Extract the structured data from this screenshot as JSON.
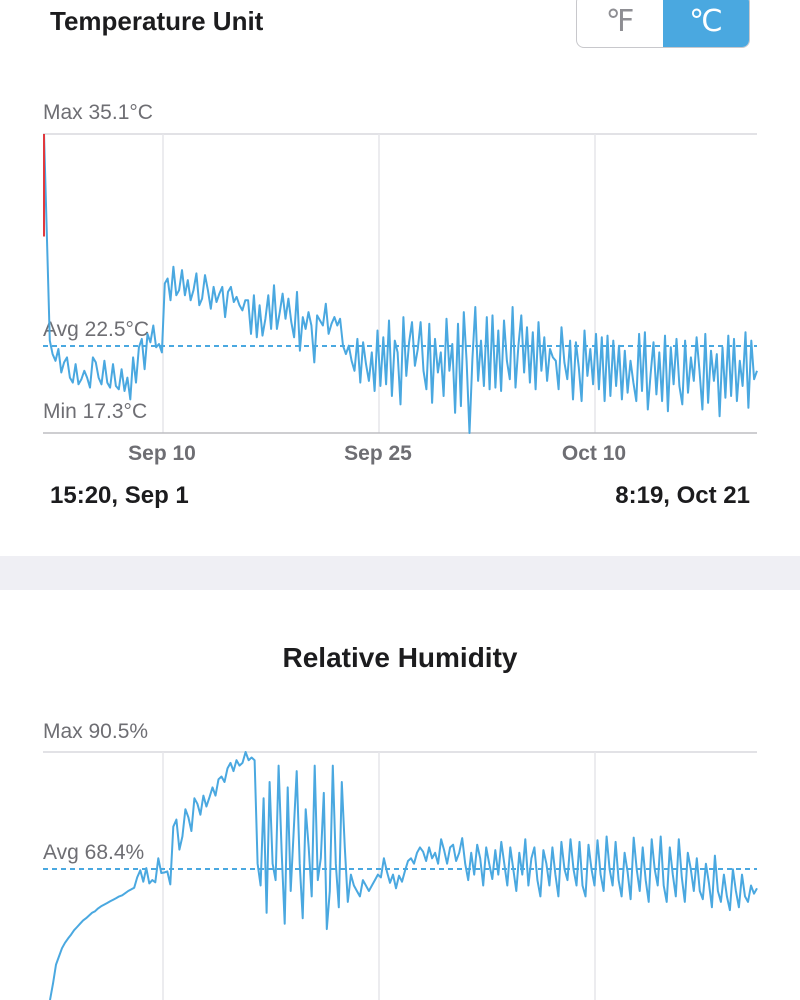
{
  "temperature": {
    "unit_title": "Temperature Unit",
    "unit_options": [
      "℉",
      "℃"
    ],
    "selected_unit": "℃",
    "max_label": "Max 35.1°C",
    "avg_label": "Avg 22.5°C",
    "min_label": "Min 17.3°C",
    "start_label": "15:20,  Sep 1",
    "end_label": "8:19,  Oct 21",
    "colors": {
      "line": "#4aa8e0",
      "peak": "#e0393e",
      "grid": "#d9d9de",
      "text": "#6e6e73"
    }
  },
  "humidity": {
    "title": "Relative Humidity",
    "max_label": "Max 90.5%",
    "avg_label": "Avg 68.4%"
  },
  "chart_data": [
    {
      "type": "line",
      "title": "",
      "x_start": "2023-09-01T15:20",
      "x_end": "2023-10-21T08:19",
      "x_ticks": [
        "Sep 10",
        "Sep 25",
        "Oct 10"
      ],
      "ylim": [
        17.3,
        35.1
      ],
      "max": 35.1,
      "avg": 22.5,
      "min": 17.3,
      "unit": "°C",
      "series": [
        {
          "values": [
            35.1,
            29.0,
            22.8,
            22.0,
            21.6,
            22.3,
            20.9,
            21.5,
            21.8,
            20.6,
            20.3,
            21.4,
            20.2,
            20.5,
            21.0,
            20.6,
            20.0,
            21.8,
            21.5,
            20.6,
            20.2,
            21.6,
            20.3,
            20.0,
            21.4,
            20.1,
            19.9,
            21.1,
            19.8,
            20.6,
            19.3,
            21.8,
            20.3,
            22.4,
            22.9,
            21.1,
            23.2,
            22.7,
            23.7,
            22.4,
            22.6,
            22.1,
            26.2,
            26.5,
            25.2,
            27.2,
            25.5,
            25.8,
            27.0,
            25.5,
            26.4,
            25.2,
            25.8,
            26.8,
            24.9,
            25.3,
            26.7,
            25.8,
            24.7,
            26.0,
            25.1,
            25.6,
            26.0,
            24.2,
            25.7,
            26.0,
            25.1,
            25.4,
            24.9,
            24.6,
            25.2,
            25.2,
            23.2,
            25.5,
            23.0,
            24.9,
            23.1,
            24.1,
            25.5,
            23.5,
            26.1,
            23.5,
            24.5,
            25.6,
            24.1,
            25.3,
            23.9,
            23.0,
            25.7,
            22.2,
            24.2,
            23.5,
            24.5,
            23.7,
            21.5,
            24.3,
            24.0,
            23.7,
            25.0,
            23.2,
            23.8,
            24.2,
            23.7,
            24.1,
            22.5,
            22.0,
            22.5,
            21.6,
            21.0,
            22.9,
            20.3,
            22.7,
            21.4,
            20.4,
            22.1,
            19.8,
            23.4,
            20.1,
            23.0,
            20.2,
            24.0,
            19.5,
            22.8,
            22.1,
            19.0,
            24.2,
            20.7,
            22.7,
            23.9,
            21.3,
            22.3,
            23.9,
            21.0,
            19.9,
            23.8,
            19.1,
            22.9,
            20.9,
            22.1,
            19.5,
            24.1,
            21.0,
            22.6,
            18.5,
            23.8,
            18.9,
            24.5,
            21.6,
            17.3,
            21.7,
            24.8,
            20.4,
            22.8,
            20.1,
            24.2,
            19.9,
            24.3,
            20.0,
            23.4,
            19.8,
            24.0,
            21.6,
            20.5,
            24.8,
            20.0,
            22.5,
            24.3,
            20.9,
            23.6,
            20.3,
            23.3,
            19.9,
            23.9,
            21.0,
            23.0,
            20.4,
            22.3,
            21.8,
            21.6,
            19.9,
            23.6,
            21.5,
            20.5,
            22.8,
            19.3,
            22.7,
            21.2,
            19.2,
            23.4,
            20.7,
            22.3,
            20.2,
            23.2,
            19.9,
            23.0,
            19.2,
            23.1,
            19.5,
            22.8,
            20.1,
            22.5,
            19.3,
            22.2,
            19.7,
            21.6,
            20.3,
            19.2,
            23.2,
            19.8,
            23.3,
            18.7,
            20.8,
            22.7,
            19.6,
            22.1,
            19.2,
            23.1,
            18.6,
            22.4,
            20.2,
            22.9,
            20.1,
            19.0,
            22.8,
            19.7,
            21.8,
            20.4,
            23.0,
            21.0,
            18.7,
            23.2,
            19.1,
            22.2,
            20.4,
            22.0,
            18.3,
            22.4,
            19.4,
            23.1,
            19.5,
            22.9,
            19.2,
            21.6,
            20.1,
            23.3,
            18.8,
            22.8,
            20.5,
            21.0
          ]
        }
      ]
    },
    {
      "type": "line",
      "title": "",
      "ylim": [
        45,
        90.5
      ],
      "max": 90.5,
      "avg": 68.4,
      "unit": "%",
      "series": [
        {
          "values": [
            45.0,
            48.0,
            51.5,
            53.0,
            54.5,
            55.5,
            56.3,
            57.0,
            57.8,
            58.4,
            59.0,
            59.6,
            60.0,
            60.5,
            61.0,
            61.3,
            61.8,
            62.2,
            62.5,
            62.8,
            63.1,
            63.4,
            63.7,
            64.0,
            64.2,
            64.6,
            65.0,
            65.3,
            65.6,
            67.5,
            68.8,
            66.7,
            69.2,
            66.4,
            67.0,
            66.6,
            71.0,
            68.3,
            68.4,
            68.6,
            66.2,
            76.8,
            78.1,
            72.6,
            75.0,
            80.0,
            78.5,
            76.0,
            82.0,
            81.0,
            79.0,
            82.5,
            80.5,
            82.2,
            84.0,
            82.5,
            85.5,
            86.0,
            85.0,
            87.5,
            88.5,
            87.0,
            89.0,
            88.0,
            88.5,
            90.5,
            89.0,
            89.5,
            89.0,
            70.0,
            66.0,
            82.0,
            61.0,
            85.0,
            70.0,
            67.0,
            88.0,
            72.0,
            59.0,
            84.0,
            65.0,
            76.0,
            87.0,
            70.0,
            60.0,
            80.0,
            73.0,
            64.0,
            88.0,
            67.0,
            71.0,
            83.0,
            58.0,
            65.0,
            88.0,
            70.0,
            62.0,
            85.0,
            73.0,
            63.0,
            68.0,
            66.0,
            65.0,
            64.0,
            67.0,
            66.0,
            65.0,
            66.0,
            67.0,
            68.0,
            67.5,
            71.0,
            68.5,
            66.5,
            68.0,
            65.5,
            67.8,
            66.7,
            68.7,
            70.5,
            71.0,
            70.0,
            72.0,
            73.0,
            72.2,
            70.5,
            73.0,
            71.0,
            72.0,
            70.0,
            74.5,
            72.5,
            70.0,
            73.0,
            73.5,
            70.5,
            72.0,
            74.7,
            70.0,
            67.0,
            72.0,
            68.0,
            73.5,
            71.0,
            66.0,
            73.0,
            70.0,
            67.2,
            72.5,
            68.0,
            74.0,
            70.0,
            66.0,
            73.0,
            69.0,
            65.0,
            72.0,
            68.0,
            74.5,
            66.0,
            71.0,
            73.0,
            67.0,
            64.0,
            72.5,
            70.0,
            66.0,
            73.0,
            68.0,
            64.0,
            74.0,
            69.0,
            67.0,
            74.5,
            69.0,
            66.0,
            74.0,
            66.0,
            64.0,
            73.5,
            69.0,
            66.0,
            74.3,
            68.0,
            65.0,
            75.0,
            69.0,
            66.0,
            74.0,
            67.0,
            64.0,
            72.0,
            68.5,
            63.5,
            74.8,
            69.0,
            65.0,
            73.0,
            67.0,
            63.0,
            74.5,
            69.0,
            66.0,
            75.0,
            66.0,
            63.0,
            73.0,
            68.0,
            64.0,
            74.5,
            67.5,
            63.0,
            72.0,
            69.0,
            65.0,
            71.0,
            65.0,
            63.5,
            70.0,
            66.5,
            62.0,
            71.5,
            65.0,
            63.0,
            68.0,
            64.0,
            61.5,
            69.0,
            65.0,
            62.0,
            68.0,
            64.0,
            63.0,
            66.0,
            64.5,
            65.5
          ]
        }
      ]
    }
  ]
}
